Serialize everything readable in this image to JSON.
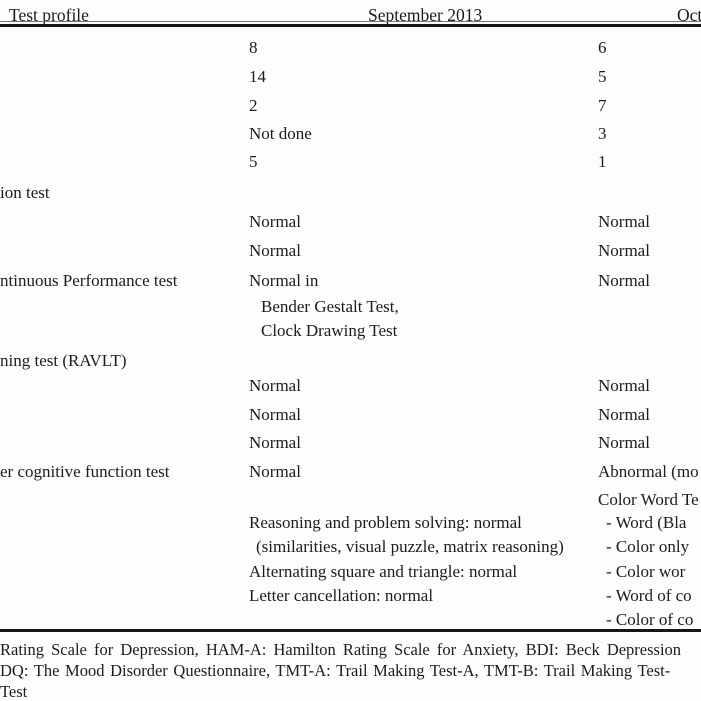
{
  "table": {
    "header": {
      "col1": "Test profile",
      "col2": "September 2013",
      "col3": "Oct"
    },
    "rows": [
      {
        "label": "",
        "sep": "8",
        "oct": "6"
      },
      {
        "label": "",
        "sep": "14",
        "oct": "5"
      },
      {
        "label": "",
        "sep": "2",
        "oct": "7"
      },
      {
        "label": "",
        "sep": "Not done",
        "oct": "3"
      },
      {
        "label": "",
        "sep": "5",
        "oct": "1"
      },
      {
        "label": "ion test",
        "sep": "",
        "oct": ""
      },
      {
        "label": "",
        "sep": "Normal",
        "oct": "Normal"
      },
      {
        "label": "",
        "sep": "Normal",
        "oct": "Normal"
      },
      {
        "label": "ntinuous Performance test",
        "sep": "Normal in",
        "oct": "Normal"
      },
      {
        "label": "",
        "sep": "Bender Gestalt Test,",
        "sep_class": "sub",
        "oct": ""
      },
      {
        "label": "",
        "sep": "Clock Drawing Test",
        "sep_class": "sub",
        "oct": ""
      },
      {
        "label": "ning test (RAVLT)",
        "sep": "",
        "oct": ""
      },
      {
        "label": "",
        "sep": "Normal",
        "oct": "Normal"
      },
      {
        "label": "",
        "sep": "Normal",
        "oct": "Normal"
      },
      {
        "label": "",
        "sep": "Normal",
        "oct": "Normal"
      },
      {
        "label": "er cognitive function test",
        "sep": "Normal",
        "oct": "Abnormal (mo"
      },
      {
        "label": "",
        "sep": "",
        "oct": "Color Word Te"
      },
      {
        "label": "",
        "sep": "Reasoning and problem solving: normal",
        "oct": "- Word (Bla",
        "oct_class": "dash"
      },
      {
        "label": "",
        "sep": "(similarities, visual puzzle, matrix reasoning)",
        "sep_class": "paren",
        "oct": "- Color only",
        "oct_class": "dash"
      },
      {
        "label": "",
        "sep": "Alternating square and triangle: normal",
        "oct": "- Color wor",
        "oct_class": "dash"
      },
      {
        "label": "",
        "sep": "Letter cancellation: normal",
        "oct": "- Word of co",
        "oct_class": "dash"
      },
      {
        "label": "",
        "sep": "",
        "oct": "- Color of co",
        "oct_class": "dash"
      }
    ]
  },
  "footnote": {
    "line1": "Rating Scale for Depression, HAM-A: Hamilton Rating Scale for Anxiety, BDI: Beck Depression",
    "line2": "DQ: The Mood Disorder Questionnaire, TMT-A: Trail Making Test-A, TMT-B: Trail Making Test-",
    "line3": "Test"
  },
  "colors": {
    "background": "#fdfdfd",
    "text": "#1c1c1c",
    "rule": "#161616"
  }
}
